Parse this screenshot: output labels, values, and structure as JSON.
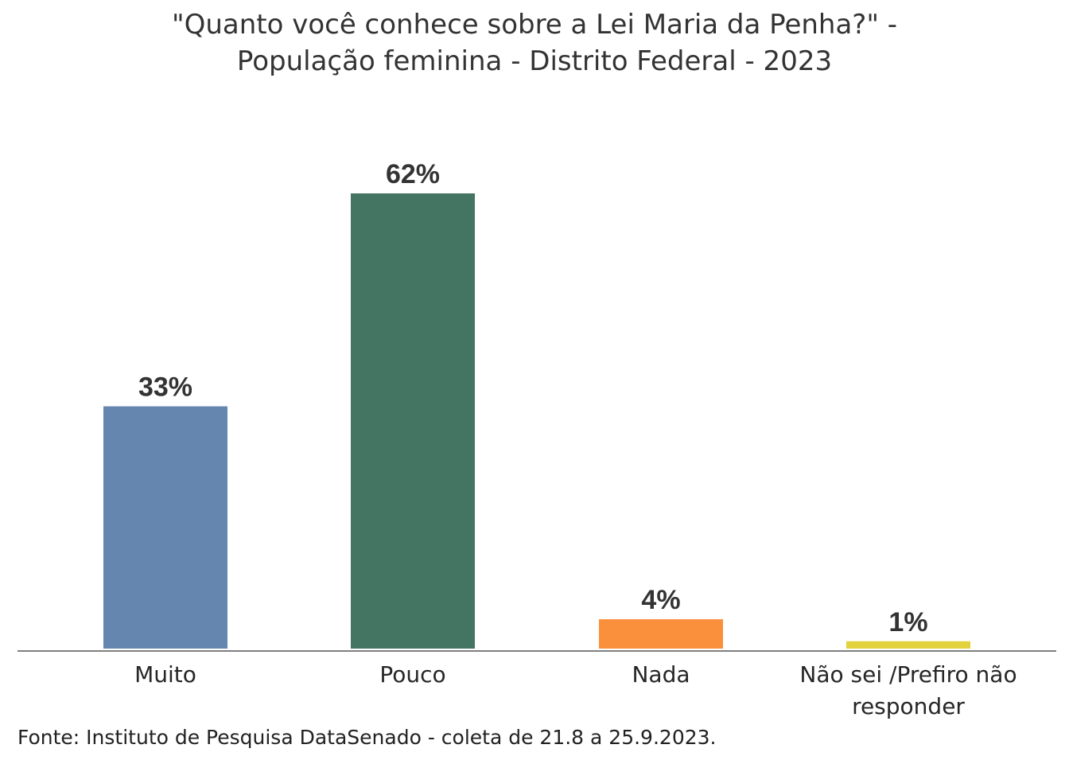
{
  "chart_data": {
    "type": "bar",
    "title_lines": [
      "\"Quanto você conhece sobre a Lei Maria da Penha?\" -",
      "População feminina - Distrito Federal - 2023"
    ],
    "categories": [
      [
        "Muito"
      ],
      [
        "Pouco"
      ],
      [
        "Nada"
      ],
      [
        "Não sei /Prefiro não",
        "responder"
      ]
    ],
    "values": [
      33,
      62,
      4,
      1
    ],
    "value_labels": [
      "33%",
      "62%",
      "4%",
      "1%"
    ],
    "unit": "%",
    "ylim": [
      0,
      62
    ],
    "grid": false,
    "legend": "none",
    "colors": [
      "#6586ae",
      "#447462",
      "#fb903c",
      "#e2d23e"
    ]
  },
  "source": "Fonte: Instituto de Pesquisa DataSenado - coleta de 21.8 a 25.9.2023."
}
